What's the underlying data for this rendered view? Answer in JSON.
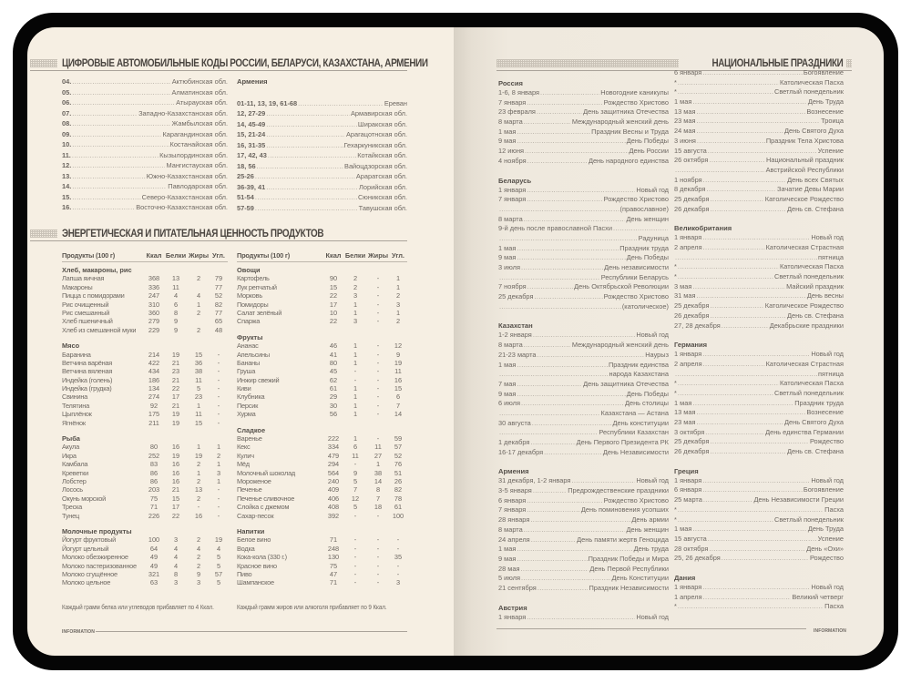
{
  "car_codes": {
    "title": "ЦИФРОВЫЕ АВТОМОБИЛЬНЫЕ КОДЫ РОССИИ, БЕЛАРУСИ, КАЗАХСТАНА, АРМЕНИИ",
    "kazakhstan": [
      {
        "code": "04.",
        "region": "Актюбинская обл."
      },
      {
        "code": "05.",
        "region": "Алматинская обл."
      },
      {
        "code": "06.",
        "region": "Атырауская обл."
      },
      {
        "code": "07.",
        "region": "Западно-Казахстанская обл."
      },
      {
        "code": "08.",
        "region": "Жамбылская обл."
      },
      {
        "code": "09.",
        "region": "Карагандинская обл."
      },
      {
        "code": "10.",
        "region": "Костанайская обл."
      },
      {
        "code": "11.",
        "region": "Кызылординская обл."
      },
      {
        "code": "12.",
        "region": "Мангистауская обл."
      },
      {
        "code": "13.",
        "region": "Южно-Казахстанская обл."
      },
      {
        "code": "14.",
        "region": "Павлодарская обл."
      },
      {
        "code": "15.",
        "region": "Северо-Казахстанская обл."
      },
      {
        "code": "16.",
        "region": "Восточно-Казахстанская обл."
      }
    ],
    "armenia": {
      "heading": "Армения",
      "items": [
        {
          "code": "01-11, 13, 19, 61-68",
          "region": "Ереван"
        },
        {
          "code": "12, 27-29",
          "region": "Армавирская обл."
        },
        {
          "code": "14, 45-49",
          "region": "Ширакская обл."
        },
        {
          "code": "15, 21-24",
          "region": "Арагацотнская обл."
        },
        {
          "code": "16, 31-35",
          "region": "Гехаркуникская обл."
        },
        {
          "code": "17, 42, 43",
          "region": "Котайкская обл."
        },
        {
          "code": "18, 56",
          "region": "Вайоцдзорская обл."
        },
        {
          "code": "25-26",
          "region": "Араратская обл."
        },
        {
          "code": "36-39, 41",
          "region": "Лорийская обл."
        },
        {
          "code": "51-54",
          "region": "Сюникская обл."
        },
        {
          "code": "57-59",
          "region": "Тавушская обл."
        }
      ]
    }
  },
  "nutrition": {
    "title": "ЭНЕРГЕТИЧЕСКАЯ И ПИТАТЕЛЬНАЯ ЦЕННОСТЬ ПРОДУКТОВ",
    "headers": [
      "Продукты (100 г)",
      "Ккал",
      "Белки",
      "Жиры",
      "Угл."
    ],
    "left": [
      {
        "group": "Хлеб, макароны, рис",
        "rows": [
          [
            "Лапша яичная",
            "368",
            "13",
            "2",
            "79"
          ],
          [
            "Макароны",
            "336",
            "11",
            "",
            "77"
          ],
          [
            "Пицца с помидорами",
            "247",
            "4",
            "4",
            "52"
          ],
          [
            "Рис очищенный",
            "310",
            "6",
            "1",
            "82"
          ],
          [
            "Рис смешанный",
            "360",
            "8",
            "2",
            "77"
          ],
          [
            "Хлеб пшеничный",
            "279",
            "9",
            "",
            "65"
          ],
          [
            "Хлеб из смешанной муки",
            "229",
            "9",
            "2",
            "48"
          ]
        ]
      },
      {
        "group": "Мясо",
        "rows": [
          [
            "Баранина",
            "214",
            "19",
            "15",
            "-"
          ],
          [
            "Ветчина варёная",
            "422",
            "21",
            "36",
            "-"
          ],
          [
            "Ветчина вяленая",
            "434",
            "23",
            "38",
            "-"
          ],
          [
            "Индейка (голень)",
            "186",
            "21",
            "11",
            "-"
          ],
          [
            "Индейка (грудка)",
            "134",
            "22",
            "5",
            "-"
          ],
          [
            "Свинина",
            "274",
            "17",
            "23",
            "-"
          ],
          [
            "Телятина",
            "92",
            "21",
            "1",
            "-"
          ],
          [
            "Цыплёнок",
            "175",
            "19",
            "11",
            "-"
          ],
          [
            "Ягнёнок",
            "211",
            "19",
            "15",
            "-"
          ]
        ]
      },
      {
        "group": "Рыба",
        "rows": [
          [
            "Акула",
            "80",
            "16",
            "1",
            "1"
          ],
          [
            "Икра",
            "252",
            "19",
            "19",
            "2"
          ],
          [
            "Камбала",
            "83",
            "16",
            "2",
            "1"
          ],
          [
            "Креветки",
            "86",
            "16",
            "1",
            "3"
          ],
          [
            "Лобстер",
            "86",
            "16",
            "2",
            "1"
          ],
          [
            "Лосось",
            "203",
            "21",
            "13",
            "-"
          ],
          [
            "Окунь морской",
            "75",
            "15",
            "2",
            "-"
          ],
          [
            "Треска",
            "71",
            "17",
            "-",
            "-"
          ],
          [
            "Тунец",
            "226",
            "22",
            "16",
            "-"
          ]
        ]
      },
      {
        "group": "Молочные продукты",
        "rows": [
          [
            "Йогурт фруктовый",
            "100",
            "3",
            "2",
            "19"
          ],
          [
            "Йогурт цельный",
            "64",
            "4",
            "4",
            "4"
          ],
          [
            "Молоко обезжиренное",
            "49",
            "4",
            "2",
            "5"
          ],
          [
            "Молоко пастеризованное",
            "49",
            "4",
            "2",
            "5"
          ],
          [
            "Молоко сгущённое",
            "321",
            "8",
            "9",
            "57"
          ],
          [
            "Молоко цельное",
            "63",
            "3",
            "3",
            "5"
          ]
        ]
      }
    ],
    "right": [
      {
        "group": "Овощи",
        "rows": [
          [
            "Картофель",
            "90",
            "2",
            "-",
            "1"
          ],
          [
            "Лук репчатый",
            "15",
            "2",
            "-",
            "1"
          ],
          [
            "Морковь",
            "22",
            "3",
            "-",
            "2"
          ],
          [
            "Помидоры",
            "17",
            "1",
            "-",
            "3"
          ],
          [
            "Салат зелёный",
            "10",
            "1",
            "-",
            "1"
          ],
          [
            "Спаржа",
            "22",
            "3",
            "-",
            "2"
          ]
        ]
      },
      {
        "group": "Фрукты",
        "rows": [
          [
            "Ананас",
            "46",
            "1",
            "-",
            "12"
          ],
          [
            "Апельсины",
            "41",
            "1",
            "-",
            "9"
          ],
          [
            "Бананы",
            "80",
            "1",
            "-",
            "19"
          ],
          [
            "Груша",
            "45",
            "-",
            "-",
            "11"
          ],
          [
            "Инжир свежий",
            "62",
            "-",
            "-",
            "16"
          ],
          [
            "Киви",
            "61",
            "1",
            "-",
            "15"
          ],
          [
            "Клубника",
            "29",
            "1",
            "-",
            "6"
          ],
          [
            "Персик",
            "30",
            "1",
            "-",
            "7"
          ],
          [
            "Хурма",
            "56",
            "1",
            "-",
            "14"
          ]
        ]
      },
      {
        "group": "Сладкое",
        "rows": [
          [
            "Варенье",
            "222",
            "1",
            "-",
            "59"
          ],
          [
            "Кекс",
            "334",
            "6",
            "11",
            "57"
          ],
          [
            "Кулич",
            "479",
            "11",
            "27",
            "52"
          ],
          [
            "Мёд",
            "294",
            "-",
            "1",
            "76"
          ],
          [
            "Молочный шоколад",
            "564",
            "9",
            "38",
            "51"
          ],
          [
            "Мороженое",
            "240",
            "5",
            "14",
            "26"
          ],
          [
            "Печенье",
            "409",
            "7",
            "8",
            "82"
          ],
          [
            "Печенье сливочное",
            "406",
            "12",
            "7",
            "78"
          ],
          [
            "Слойка с джемом",
            "408",
            "5",
            "18",
            "61"
          ],
          [
            "Сахар-песок",
            "392",
            "-",
            "-",
            "100"
          ]
        ]
      },
      {
        "group": "Напитки",
        "rows": [
          [
            "Белое вино",
            "71",
            "-",
            "-",
            "-"
          ],
          [
            "Водка",
            "248",
            "-",
            "-",
            "-"
          ],
          [
            "Кока-кола (330 г.)",
            "130",
            "-",
            "-",
            "35"
          ],
          [
            "Красное вино",
            "75",
            "-",
            "-",
            "-"
          ],
          [
            "Пиво",
            "47",
            "-",
            "-",
            "-"
          ],
          [
            "Шампанское",
            "71",
            "-",
            "-",
            "3"
          ]
        ]
      }
    ],
    "notes": [
      "Каждый грамм белка или углеводов прибавляет по 4 Ккал.",
      "Каждый грамм жиров или алкоголя прибавляет по 9 Ккал."
    ]
  },
  "holidays": {
    "title": "НАЦИОНАЛЬНЫЕ ПРАЗДНИКИ",
    "columns": [
      [
        {
          "country": "Россия",
          "items": [
            [
              "1-6, 8 января",
              "Новогодние каникулы"
            ],
            [
              "7 января",
              "Рождество Христово"
            ],
            [
              "23 февраля",
              "День защитника Отечества"
            ],
            [
              "8 марта",
              "Международный женский день"
            ],
            [
              "1 мая",
              "Праздник Весны и Труда"
            ],
            [
              "9 мая",
              "День Победы"
            ],
            [
              "12 июня",
              "День России"
            ],
            [
              "4 ноября",
              "День народного единства"
            ]
          ]
        },
        {
          "country": "Беларусь",
          "items": [
            [
              "1 января",
              "Новый год"
            ],
            [
              "7 января",
              "Рождество Христово"
            ],
            [
              "",
              "(православное)"
            ],
            [
              "8 марта",
              "День женщин"
            ],
            [
              "9-й день после православной Пасхи",
              ""
            ],
            [
              "",
              "Радуница"
            ],
            [
              "1 мая",
              "Праздник труда"
            ],
            [
              "9 мая",
              "День Победы"
            ],
            [
              "3 июля",
              "День независимости"
            ],
            [
              "",
              "Республики Беларусь"
            ],
            [
              "7 ноября",
              "День Октябрьской Революции"
            ],
            [
              "25 декабря",
              "Рождество Христово"
            ],
            [
              "",
              "(католическое)"
            ]
          ]
        },
        {
          "country": "Казахстан",
          "items": [
            [
              "1-2 января",
              "Новый год"
            ],
            [
              "8 марта",
              "Международный женский день"
            ],
            [
              "21-23 марта",
              "Наурыз"
            ],
            [
              "1 мая",
              "Праздник единства"
            ],
            [
              "",
              "народа Казахстана"
            ],
            [
              "7 мая",
              "День защитника Отечества"
            ],
            [
              "9 мая",
              "День Победы"
            ],
            [
              "6 июля",
              "День столицы"
            ],
            [
              "",
              "Казахстана — Астана"
            ],
            [
              "30 августа",
              "День конституции"
            ],
            [
              "",
              "Республики Казахстан"
            ],
            [
              "1 декабря",
              "День Первого Президента РК"
            ],
            [
              "16-17 декабря",
              "День Независимости"
            ]
          ]
        },
        {
          "country": "Армения",
          "items": [
            [
              "31 декабря, 1-2 января",
              "Новый год"
            ],
            [
              "3-5 января",
              "Предрождественские праздники"
            ],
            [
              "6 января",
              "Рождество Христово"
            ],
            [
              "7 января",
              "День поминовения усопших"
            ],
            [
              "28 января",
              "День армии"
            ],
            [
              "8 марта",
              "День женщин"
            ],
            [
              "24 апреля",
              "День памяти жертв Геноцида"
            ],
            [
              "1 мая",
              "День труда"
            ],
            [
              "9 мая",
              "Праздник Победы и Мира"
            ],
            [
              "28 мая",
              "День Первой Республики"
            ],
            [
              "5 июля",
              "День Конституции"
            ],
            [
              "21 сентября",
              "Праздник Независимости"
            ]
          ]
        },
        {
          "country": "Австрия",
          "items": [
            [
              "1 января",
              "Новый год"
            ]
          ]
        }
      ],
      [
        {
          "country": "",
          "items": [
            [
              "6 января",
              "Богоявление"
            ],
            [
              "*",
              "Католическая Пасха"
            ],
            [
              "*",
              "Светлый понедельник"
            ],
            [
              "1 мая",
              "День Труда"
            ],
            [
              "13 мая",
              "Вознесение"
            ],
            [
              "23 мая",
              "Троица"
            ],
            [
              "24 мая",
              "День Святого Духа"
            ],
            [
              "3 июня",
              "Праздник Тела Христова"
            ],
            [
              "15 августа",
              "Успение"
            ],
            [
              "26 октября",
              "Национальный праздник"
            ],
            [
              "",
              "Австрийской Республики"
            ],
            [
              "1 ноября",
              "День всех Святых"
            ],
            [
              "8 декабря",
              "Зачатие Девы Марии"
            ],
            [
              "25 декабря",
              "Католическое Рождество"
            ],
            [
              "26 декабря",
              "День св. Стефана"
            ]
          ]
        },
        {
          "country": "Великобритания",
          "items": [
            [
              "1 января",
              "Новый год"
            ],
            [
              "2 апреля",
              "Католическая Страстная"
            ],
            [
              "",
              "пятница"
            ],
            [
              "*",
              "Католическая Пасха"
            ],
            [
              "*",
              "Светлый понедельник"
            ],
            [
              "3 мая",
              "Майский праздник"
            ],
            [
              "31 мая",
              "День весны"
            ],
            [
              "25 декабря",
              "Католическое Рождество"
            ],
            [
              "26 декабря",
              "День св. Стефана"
            ],
            [
              "27, 28 декабря",
              "Декабрьские праздники"
            ]
          ]
        },
        {
          "country": "Германия",
          "items": [
            [
              "1 января",
              "Новый год"
            ],
            [
              "2 апреля",
              "Католическая Страстная"
            ],
            [
              "",
              "пятница"
            ],
            [
              "*",
              "Католическая Пасха"
            ],
            [
              "*",
              "Светлый понедельник"
            ],
            [
              "1 мая",
              "Праздник труда"
            ],
            [
              "13 мая",
              "Вознесение"
            ],
            [
              "23 мая",
              "День Святого Духа"
            ],
            [
              "3 октября",
              "День единства Германии"
            ],
            [
              "25 декабря",
              "Рождество"
            ],
            [
              "26 декабря",
              "День св. Стефана"
            ]
          ]
        },
        {
          "country": "Греция",
          "items": [
            [
              "1 января",
              "Новый год"
            ],
            [
              "6 января",
              "Богоявление"
            ],
            [
              "25 марта",
              "День Независимости Греции"
            ],
            [
              "*",
              "Пасха"
            ],
            [
              "*",
              "Светлый понедельник"
            ],
            [
              "1 мая",
              "День Труда"
            ],
            [
              "15 августа",
              "Успение"
            ],
            [
              "28 октября",
              "День «Охи»"
            ],
            [
              "25, 26 декабря",
              "Рождество"
            ]
          ]
        },
        {
          "country": "Дания",
          "items": [
            [
              "1 января",
              "Новый год"
            ],
            [
              "1 апреля",
              "Великий четверг"
            ],
            [
              "*",
              "Пасха"
            ]
          ]
        }
      ]
    ]
  },
  "footer": {
    "left": "INFORMATION",
    "right": "INFORMATION"
  }
}
